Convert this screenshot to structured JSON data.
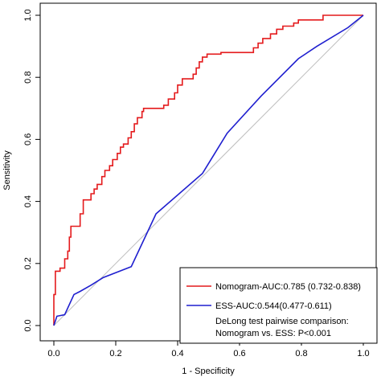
{
  "chart_data": {
    "type": "line",
    "title": "",
    "xlabel": "1 - Specificity",
    "ylabel": "Sensitivity",
    "xlim": [
      0.0,
      1.0
    ],
    "ylim": [
      0.0,
      1.0
    ],
    "x_ticks": [
      "0.0",
      "0.2",
      "0.4",
      "0.6",
      "0.8",
      "1.0"
    ],
    "y_ticks": [
      "0.0",
      "0.2",
      "0.4",
      "0.6",
      "0.8",
      "1.0"
    ],
    "grid": false,
    "reference_line": {
      "from": [
        0,
        0
      ],
      "to": [
        1,
        1
      ],
      "color": "#bdbdbd"
    },
    "legend": {
      "placement": "bottom-right",
      "entries": [
        {
          "label": "Nomogram-AUC:0.785 (0.732-0.838)",
          "color": "#e41a1c"
        },
        {
          "label": "ESS-AUC:0.544(0.477-0.611)",
          "color": "#1f1fcf"
        }
      ],
      "note_lines": [
        "DeLong test pairwise comparison:",
        "Nomogram vs. ESS: P<0.001"
      ]
    },
    "series": [
      {
        "name": "Nomogram-AUC:0.785 (0.732-0.838)",
        "color": "#e41a1c",
        "points": [
          [
            0,
            0
          ],
          [
            0,
            0.02
          ],
          [
            0,
            0.1
          ],
          [
            0.005,
            0.1
          ],
          [
            0.005,
            0.175
          ],
          [
            0.02,
            0.175
          ],
          [
            0.02,
            0.185
          ],
          [
            0.035,
            0.185
          ],
          [
            0.035,
            0.215
          ],
          [
            0.045,
            0.215
          ],
          [
            0.045,
            0.24
          ],
          [
            0.05,
            0.24
          ],
          [
            0.05,
            0.285
          ],
          [
            0.055,
            0.285
          ],
          [
            0.055,
            0.32
          ],
          [
            0.085,
            0.32
          ],
          [
            0.085,
            0.36
          ],
          [
            0.095,
            0.36
          ],
          [
            0.095,
            0.405
          ],
          [
            0.12,
            0.405
          ],
          [
            0.12,
            0.425
          ],
          [
            0.13,
            0.425
          ],
          [
            0.13,
            0.44
          ],
          [
            0.14,
            0.44
          ],
          [
            0.14,
            0.455
          ],
          [
            0.155,
            0.455
          ],
          [
            0.155,
            0.48
          ],
          [
            0.165,
            0.48
          ],
          [
            0.165,
            0.5
          ],
          [
            0.18,
            0.5
          ],
          [
            0.18,
            0.515
          ],
          [
            0.19,
            0.515
          ],
          [
            0.19,
            0.535
          ],
          [
            0.205,
            0.535
          ],
          [
            0.205,
            0.555
          ],
          [
            0.215,
            0.555
          ],
          [
            0.215,
            0.575
          ],
          [
            0.225,
            0.575
          ],
          [
            0.225,
            0.585
          ],
          [
            0.24,
            0.585
          ],
          [
            0.24,
            0.605
          ],
          [
            0.25,
            0.605
          ],
          [
            0.25,
            0.625
          ],
          [
            0.26,
            0.625
          ],
          [
            0.26,
            0.65
          ],
          [
            0.27,
            0.65
          ],
          [
            0.27,
            0.67
          ],
          [
            0.285,
            0.67
          ],
          [
            0.285,
            0.69
          ],
          [
            0.29,
            0.69
          ],
          [
            0.29,
            0.7
          ],
          [
            0.355,
            0.7
          ],
          [
            0.355,
            0.71
          ],
          [
            0.37,
            0.71
          ],
          [
            0.37,
            0.73
          ],
          [
            0.39,
            0.73
          ],
          [
            0.39,
            0.75
          ],
          [
            0.4,
            0.75
          ],
          [
            0.4,
            0.775
          ],
          [
            0.415,
            0.775
          ],
          [
            0.415,
            0.795
          ],
          [
            0.45,
            0.795
          ],
          [
            0.45,
            0.81
          ],
          [
            0.46,
            0.81
          ],
          [
            0.46,
            0.83
          ],
          [
            0.47,
            0.83
          ],
          [
            0.47,
            0.85
          ],
          [
            0.48,
            0.85
          ],
          [
            0.48,
            0.865
          ],
          [
            0.495,
            0.865
          ],
          [
            0.495,
            0.875
          ],
          [
            0.54,
            0.875
          ],
          [
            0.54,
            0.88
          ],
          [
            0.645,
            0.88
          ],
          [
            0.645,
            0.895
          ],
          [
            0.66,
            0.895
          ],
          [
            0.66,
            0.91
          ],
          [
            0.675,
            0.91
          ],
          [
            0.675,
            0.925
          ],
          [
            0.7,
            0.925
          ],
          [
            0.7,
            0.94
          ],
          [
            0.72,
            0.94
          ],
          [
            0.72,
            0.955
          ],
          [
            0.74,
            0.955
          ],
          [
            0.74,
            0.965
          ],
          [
            0.775,
            0.965
          ],
          [
            0.775,
            0.975
          ],
          [
            0.79,
            0.975
          ],
          [
            0.79,
            0.985
          ],
          [
            0.87,
            0.985
          ],
          [
            0.87,
            1.0
          ],
          [
            1.0,
            1.0
          ]
        ]
      },
      {
        "name": "ESS-AUC:0.544(0.477-0.611)",
        "color": "#1f1fcf",
        "points": [
          [
            0,
            0
          ],
          [
            0.01,
            0.03
          ],
          [
            0.035,
            0.035
          ],
          [
            0.065,
            0.1
          ],
          [
            0.085,
            0.11
          ],
          [
            0.12,
            0.13
          ],
          [
            0.16,
            0.155
          ],
          [
            0.25,
            0.19
          ],
          [
            0.33,
            0.36
          ],
          [
            0.48,
            0.49
          ],
          [
            0.56,
            0.62
          ],
          [
            0.67,
            0.74
          ],
          [
            0.79,
            0.86
          ],
          [
            0.85,
            0.9
          ],
          [
            0.95,
            0.96
          ],
          [
            1.0,
            1.0
          ]
        ]
      }
    ]
  }
}
